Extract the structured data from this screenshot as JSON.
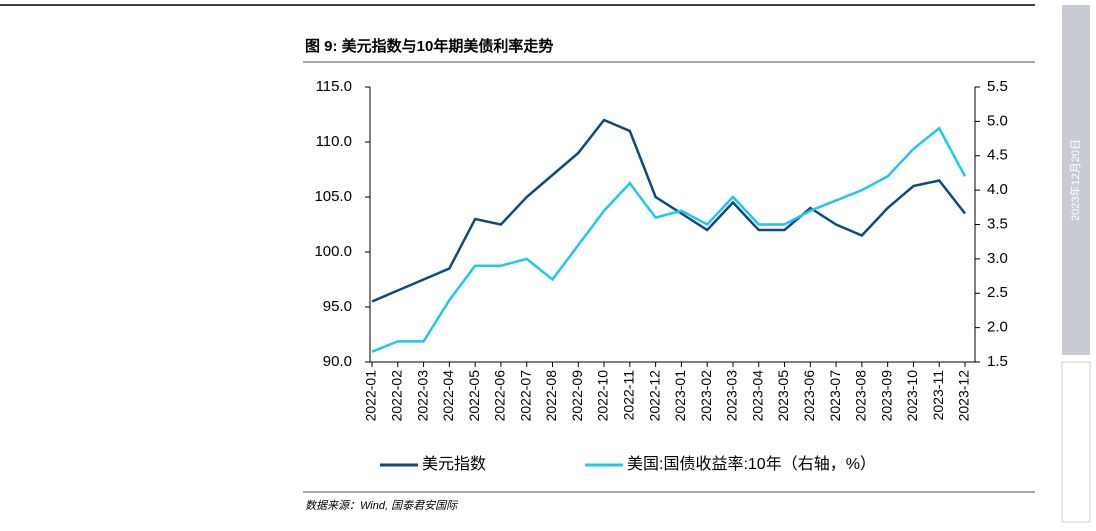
{
  "date_stamp": "2023年12月20日",
  "source": "数据来源：Wind, 国泰君安国际",
  "chart_data": {
    "type": "line",
    "title": "图 9:  美元指数与10年期美债利率走势",
    "categories": [
      "2022-01",
      "2022-02",
      "2022-03",
      "2022-04",
      "2022-05",
      "2022-06",
      "2022-07",
      "2022-08",
      "2022-09",
      "2022-10",
      "2022-11",
      "2022-12",
      "2023-01",
      "2023-02",
      "2023-03",
      "2023-04",
      "2023-05",
      "2023-06",
      "2023-07",
      "2023-08",
      "2023-09",
      "2023-10",
      "2023-11",
      "2023-12"
    ],
    "series": [
      {
        "name": "美元指数",
        "color": "#0e4a7f",
        "values": [
          95.5,
          96.5,
          97.5,
          98.5,
          103,
          102.5,
          105,
          107,
          109,
          112,
          111,
          105,
          103.5,
          102,
          104.5,
          102,
          102,
          104,
          102.5,
          101.5,
          104,
          106,
          106.5,
          103.5
        ]
      },
      {
        "name": "美国:国债收益率:10年（右轴，%）",
        "color": "#1ec8f0",
        "axis": "y2",
        "values": [
          1.65,
          1.8,
          1.8,
          2.4,
          2.9,
          2.9,
          3.0,
          2.7,
          3.2,
          3.7,
          4.1,
          3.6,
          3.7,
          3.5,
          3.9,
          3.5,
          3.5,
          3.7,
          3.85,
          4.0,
          4.2,
          4.6,
          4.9,
          4.2
        ]
      }
    ],
    "ylim": [
      90,
      115
    ],
    "yticks": [
      {
        "value": 90,
        "label": "90.0"
      },
      {
        "value": 95,
        "label": "95.0"
      },
      {
        "value": 100,
        "label": "100.0"
      },
      {
        "value": 105,
        "label": "105.0"
      },
      {
        "value": 110,
        "label": "110.0"
      },
      {
        "value": 115,
        "label": "115.0"
      }
    ],
    "y2lim": [
      1.5,
      5.5
    ],
    "y2ticks": [
      1.5,
      {
        "value": 2,
        "label": "2.0"
      },
      2.5,
      {
        "value": 3,
        "label": "3.0"
      },
      3.5,
      {
        "value": 4,
        "label": "4.0"
      },
      4.5,
      {
        "value": 5,
        "label": "5.0"
      },
      5.5
    ]
  }
}
